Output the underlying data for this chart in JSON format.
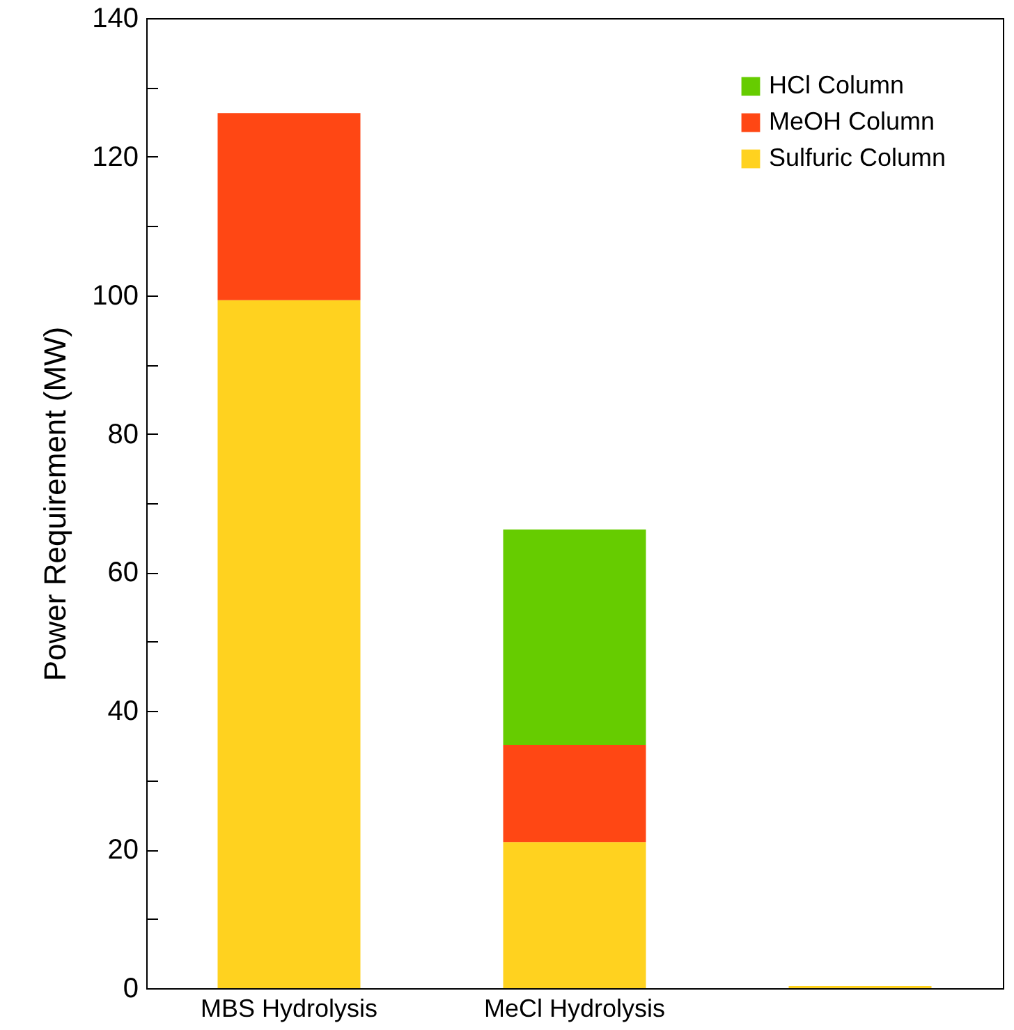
{
  "chart_data": {
    "type": "bar",
    "stacked": true,
    "ylabel": "Power Requirement (MW)",
    "categories": [
      "MBS Hydrolysis",
      "MeCl Hydrolysis",
      null
    ],
    "series": [
      {
        "name": "Sulfuric Column",
        "color": "#ffd21f",
        "values": [
          99.3,
          21.1,
          0.3
        ]
      },
      {
        "name": "MeOH Column",
        "color": "#ff4714",
        "values": [
          27,
          14,
          0
        ]
      },
      {
        "name": "HCl Column",
        "color": "#66cc00",
        "values": [
          0,
          31.1,
          0
        ]
      }
    ],
    "ylim": [
      0,
      140
    ],
    "yticks": [
      0,
      {
        "value": 10,
        "label": null
      },
      20,
      {
        "value": 30,
        "label": null
      },
      40,
      {
        "value": 50,
        "label": null
      },
      60,
      {
        "value": 70,
        "label": null
      },
      80,
      {
        "value": 90,
        "label": null
      },
      100,
      {
        "value": 110,
        "label": null
      },
      120,
      {
        "value": 130,
        "label": null
      },
      140
    ],
    "grid": false,
    "legend": "top right"
  }
}
